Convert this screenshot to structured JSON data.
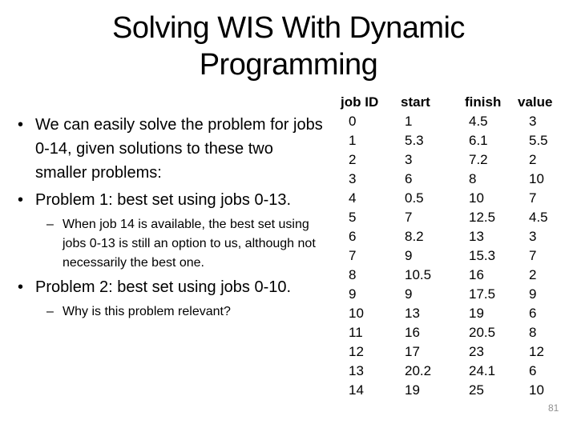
{
  "slide": {
    "title": {
      "line1": "Solving WIS With Dynamic",
      "line2": "Programming"
    },
    "markers": {
      "level1": "•",
      "level2": "–"
    },
    "bullets": [
      {
        "level": 1,
        "text": "We can easily solve the problem for jobs 0-14, given solutions to these two smaller problems:"
      },
      {
        "level": 1,
        "text": "Problem 1: best set using jobs 0-13."
      },
      {
        "level": 2,
        "text": "When job 14 is available, the best set using jobs 0-13 is still an option to us, although not necessarily the best one."
      },
      {
        "level": 1,
        "text": "Problem 2: best set using jobs 0-10."
      },
      {
        "level": 2,
        "text": "Why is this problem relevant?"
      }
    ],
    "table": {
      "columns": [
        "job ID",
        "start",
        "finish",
        "value"
      ],
      "rows": [
        [
          "0",
          "1",
          "4.5",
          "3"
        ],
        [
          "1",
          "5.3",
          "6.1",
          "5.5"
        ],
        [
          "2",
          "3",
          "7.2",
          "2"
        ],
        [
          "3",
          "6",
          "8",
          "10"
        ],
        [
          "4",
          "0.5",
          "10",
          "7"
        ],
        [
          "5",
          "7",
          "12.5",
          "4.5"
        ],
        [
          "6",
          "8.2",
          "13",
          "3"
        ],
        [
          "7",
          "9",
          "15.3",
          "7"
        ],
        [
          "8",
          "10.5",
          "16",
          "2"
        ],
        [
          "9",
          "9",
          "17.5",
          "9"
        ],
        [
          "10",
          "13",
          "19",
          "6"
        ],
        [
          "11",
          "16",
          "20.5",
          "8"
        ],
        [
          "12",
          "17",
          "23",
          "12"
        ],
        [
          "13",
          "20.2",
          "24.1",
          "6"
        ],
        [
          "14",
          "19",
          "25",
          "10"
        ]
      ]
    },
    "page_number": "81"
  }
}
